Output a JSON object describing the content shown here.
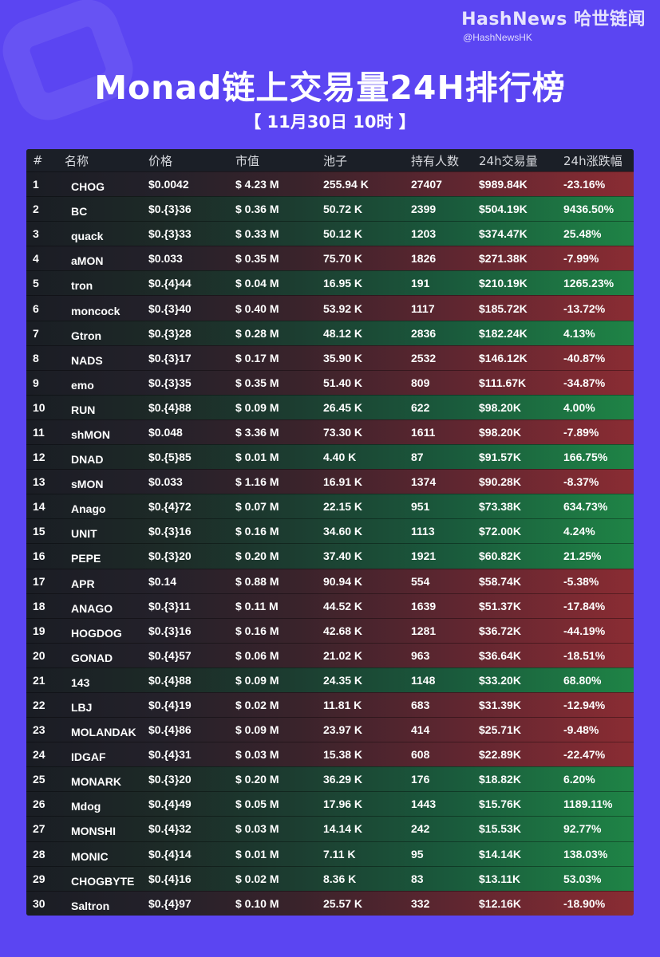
{
  "brand": {
    "name": "HashNews 哈世链闻",
    "handle": "@HashNewsHK"
  },
  "title": "Monad链上交易量24H排行榜",
  "subtitle": "【 11月30日  10时 】",
  "table": {
    "headers": [
      "#",
      "名称",
      "价格",
      "市值",
      "池子",
      "持有人数",
      "24h交易量",
      "24h涨跌幅"
    ],
    "rows": [
      {
        "idx": "1",
        "name": "CHOG",
        "price": "$0.0042",
        "mcap": "$ 4.23 M",
        "pool": "255.94 K",
        "holders": "27407",
        "volume": "$989.84K",
        "change": "-23.16%",
        "trend": "down"
      },
      {
        "idx": "2",
        "name": "BC",
        "price": "$0.{3}36",
        "mcap": "$ 0.36 M",
        "pool": "50.72 K",
        "holders": "2399",
        "volume": "$504.19K",
        "change": "9436.50%",
        "trend": "up"
      },
      {
        "idx": "3",
        "name": "quack",
        "price": "$0.{3}33",
        "mcap": "$ 0.33 M",
        "pool": "50.12 K",
        "holders": "1203",
        "volume": "$374.47K",
        "change": "25.48%",
        "trend": "up"
      },
      {
        "idx": "4",
        "name": "aMON",
        "price": "$0.033",
        "mcap": "$ 0.35 M",
        "pool": "75.70 K",
        "holders": "1826",
        "volume": "$271.38K",
        "change": "-7.99%",
        "trend": "down"
      },
      {
        "idx": "5",
        "name": "tron",
        "price": "$0.{4}44",
        "mcap": "$ 0.04 M",
        "pool": "16.95 K",
        "holders": "191",
        "volume": "$210.19K",
        "change": "1265.23%",
        "trend": "up"
      },
      {
        "idx": "6",
        "name": "moncock",
        "price": "$0.{3}40",
        "mcap": "$ 0.40 M",
        "pool": "53.92 K",
        "holders": "1117",
        "volume": "$185.72K",
        "change": "-13.72%",
        "trend": "down"
      },
      {
        "idx": "7",
        "name": "Gtron",
        "price": "$0.{3}28",
        "mcap": "$ 0.28 M",
        "pool": "48.12 K",
        "holders": "2836",
        "volume": "$182.24K",
        "change": "4.13%",
        "trend": "up"
      },
      {
        "idx": "8",
        "name": "NADS",
        "price": "$0.{3}17",
        "mcap": "$ 0.17 M",
        "pool": "35.90 K",
        "holders": "2532",
        "volume": "$146.12K",
        "change": "-40.87%",
        "trend": "down"
      },
      {
        "idx": "9",
        "name": "emo",
        "price": "$0.{3}35",
        "mcap": "$ 0.35 M",
        "pool": "51.40 K",
        "holders": "809",
        "volume": "$111.67K",
        "change": "-34.87%",
        "trend": "down"
      },
      {
        "idx": "10",
        "name": "RUN",
        "price": "$0.{4}88",
        "mcap": "$ 0.09 M",
        "pool": "26.45 K",
        "holders": "622",
        "volume": "$98.20K",
        "change": "4.00%",
        "trend": "up"
      },
      {
        "idx": "11",
        "name": "shMON",
        "price": "$0.048",
        "mcap": "$ 3.36 M",
        "pool": "73.30 K",
        "holders": "1611",
        "volume": "$98.20K",
        "change": "-7.89%",
        "trend": "down"
      },
      {
        "idx": "12",
        "name": "DNAD",
        "price": "$0.{5}85",
        "mcap": "$ 0.01 M",
        "pool": "4.40 K",
        "holders": "87",
        "volume": "$91.57K",
        "change": "166.75%",
        "trend": "up"
      },
      {
        "idx": "13",
        "name": "sMON",
        "price": "$0.033",
        "mcap": "$ 1.16 M",
        "pool": "16.91 K",
        "holders": "1374",
        "volume": "$90.28K",
        "change": "-8.37%",
        "trend": "down"
      },
      {
        "idx": "14",
        "name": "Anago",
        "price": "$0.{4}72",
        "mcap": "$ 0.07 M",
        "pool": "22.15 K",
        "holders": "951",
        "volume": "$73.38K",
        "change": "634.73%",
        "trend": "up"
      },
      {
        "idx": "15",
        "name": "UNIT",
        "price": "$0.{3}16",
        "mcap": "$ 0.16 M",
        "pool": "34.60 K",
        "holders": "1113",
        "volume": "$72.00K",
        "change": "4.24%",
        "trend": "up"
      },
      {
        "idx": "16",
        "name": "PEPE",
        "price": "$0.{3}20",
        "mcap": "$ 0.20 M",
        "pool": "37.40 K",
        "holders": "1921",
        "volume": "$60.82K",
        "change": "21.25%",
        "trend": "up"
      },
      {
        "idx": "17",
        "name": "APR",
        "price": "$0.14",
        "mcap": "$ 0.88 M",
        "pool": "90.94 K",
        "holders": "554",
        "volume": "$58.74K",
        "change": "-5.38%",
        "trend": "down"
      },
      {
        "idx": "18",
        "name": "ANAGO",
        "price": "$0.{3}11",
        "mcap": "$ 0.11 M",
        "pool": "44.52 K",
        "holders": "1639",
        "volume": "$51.37K",
        "change": "-17.84%",
        "trend": "down"
      },
      {
        "idx": "19",
        "name": "HOGDOG",
        "price": "$0.{3}16",
        "mcap": "$ 0.16 M",
        "pool": "42.68 K",
        "holders": "1281",
        "volume": "$36.72K",
        "change": "-44.19%",
        "trend": "down"
      },
      {
        "idx": "20",
        "name": "GONAD",
        "price": "$0.{4}57",
        "mcap": "$ 0.06 M",
        "pool": "21.02 K",
        "holders": "963",
        "volume": "$36.64K",
        "change": "-18.51%",
        "trend": "down"
      },
      {
        "idx": "21",
        "name": "143",
        "price": "$0.{4}88",
        "mcap": "$ 0.09 M",
        "pool": "24.35 K",
        "holders": "1148",
        "volume": "$33.20K",
        "change": "68.80%",
        "trend": "up"
      },
      {
        "idx": "22",
        "name": "LBJ",
        "price": "$0.{4}19",
        "mcap": "$ 0.02 M",
        "pool": "11.81 K",
        "holders": "683",
        "volume": "$31.39K",
        "change": "-12.94%",
        "trend": "down"
      },
      {
        "idx": "23",
        "name": "MOLANDAK",
        "price": "$0.{4}86",
        "mcap": "$ 0.09 M",
        "pool": "23.97 K",
        "holders": "414",
        "volume": "$25.71K",
        "change": "-9.48%",
        "trend": "down"
      },
      {
        "idx": "24",
        "name": "IDGAF",
        "price": "$0.{4}31",
        "mcap": "$ 0.03 M",
        "pool": "15.38 K",
        "holders": "608",
        "volume": "$22.89K",
        "change": "-22.47%",
        "trend": "down"
      },
      {
        "idx": "25",
        "name": "MONARK",
        "price": "$0.{3}20",
        "mcap": "$ 0.20 M",
        "pool": "36.29 K",
        "holders": "176",
        "volume": "$18.82K",
        "change": "6.20%",
        "trend": "up"
      },
      {
        "idx": "26",
        "name": "Mdog",
        "price": "$0.{4}49",
        "mcap": "$ 0.05 M",
        "pool": "17.96 K",
        "holders": "1443",
        "volume": "$15.76K",
        "change": "1189.11%",
        "trend": "up"
      },
      {
        "idx": "27",
        "name": "MONSHI",
        "price": "$0.{4}32",
        "mcap": "$ 0.03 M",
        "pool": "14.14 K",
        "holders": "242",
        "volume": "$15.53K",
        "change": "92.77%",
        "trend": "up"
      },
      {
        "idx": "28",
        "name": "MONIC",
        "price": "$0.{4}14",
        "mcap": "$ 0.01 M",
        "pool": "7.11 K",
        "holders": "95",
        "volume": "$14.14K",
        "change": "138.03%",
        "trend": "up"
      },
      {
        "idx": "29",
        "name": "CHOGBYTE",
        "price": "$0.{4}16",
        "mcap": "$ 0.02 M",
        "pool": "8.36 K",
        "holders": "83",
        "volume": "$13.11K",
        "change": "53.03%",
        "trend": "up"
      },
      {
        "idx": "30",
        "name": "Saltron",
        "price": "$0.{4}97",
        "mcap": "$ 0.10 M",
        "pool": "25.57 K",
        "holders": "332",
        "volume": "$12.16K",
        "change": "-18.90%",
        "trend": "down"
      }
    ]
  },
  "colors": {
    "background": "#5b45f2",
    "up": "#1f8446",
    "down": "#8a2c33",
    "table": "#171a22"
  }
}
